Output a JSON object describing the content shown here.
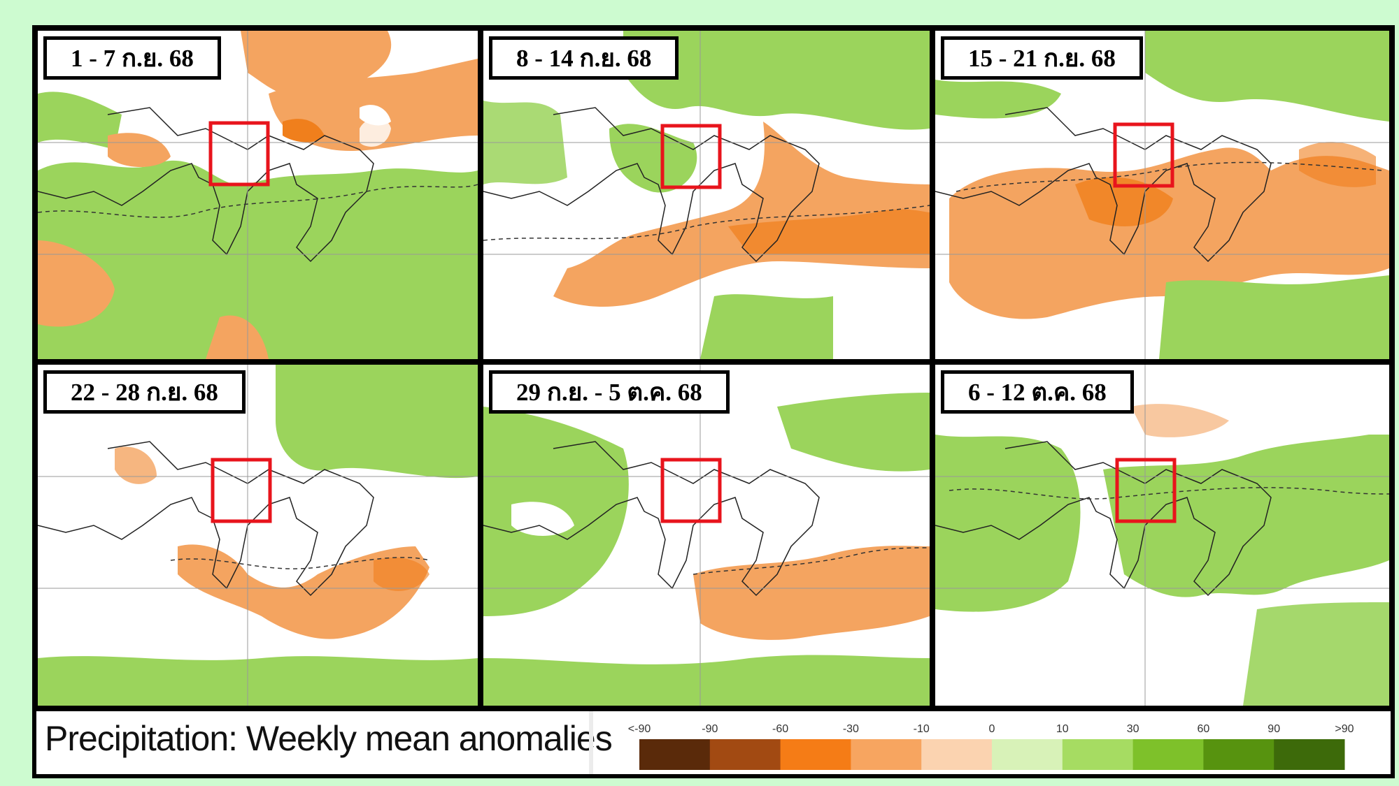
{
  "panels": [
    {
      "label": "1 - 7 ก.ย. 68"
    },
    {
      "label": "8 - 14 ก.ย. 68"
    },
    {
      "label": "15 - 21 ก.ย. 68"
    },
    {
      "label": "22 - 28 ก.ย. 68"
    },
    {
      "label": "29 ก.ย. - 5 ต.ค. 68"
    },
    {
      "label": "6 - 12 ต.ค. 68"
    }
  ],
  "legend": {
    "title": "Precipitation: Weekly mean anomalies",
    "ticks": [
      "<-90",
      "-90",
      "-60",
      "-30",
      "-10",
      "0",
      "10",
      "30",
      "60",
      "90",
      ">90"
    ],
    "colors": [
      "#5a2a0a",
      "#a24a12",
      "#f57c16",
      "#f7a560",
      "#fbd3b0",
      "#d8f2b8",
      "#a6dc62",
      "#7ec12a",
      "#57930f",
      "#3d6a0a"
    ]
  },
  "colors": {
    "dry": "#f4a460",
    "wet": "#9bd45c",
    "highlight": "#e8141c"
  }
}
